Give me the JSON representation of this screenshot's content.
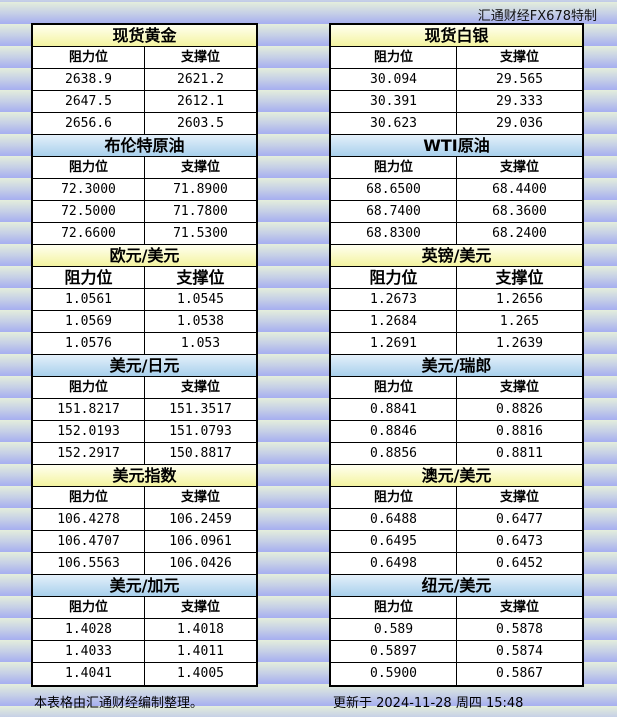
{
  "brand": "汇通财经FX678特制",
  "col_resist": "阻力位",
  "col_support": "支撑位",
  "left": [
    {
      "title": "现货黄金",
      "rows": [
        [
          "2638.9",
          "2621.2"
        ],
        [
          "2647.5",
          "2612.1"
        ],
        [
          "2656.6",
          "2603.5"
        ]
      ]
    },
    {
      "title": "布伦特原油",
      "rows": [
        [
          "72.3000",
          "71.8900"
        ],
        [
          "72.5000",
          "71.7800"
        ],
        [
          "72.6600",
          "71.5300"
        ]
      ]
    },
    {
      "title": "欧元/美元",
      "rows": [
        [
          "1.0561",
          "1.0545"
        ],
        [
          "1.0569",
          "1.0538"
        ],
        [
          "1.0576",
          "1.053"
        ]
      ]
    },
    {
      "title": "美元/日元",
      "rows": [
        [
          "151.8217",
          "151.3517"
        ],
        [
          "152.0193",
          "151.0793"
        ],
        [
          "152.2917",
          "150.8817"
        ]
      ]
    },
    {
      "title": "美元指数",
      "rows": [
        [
          "106.4278",
          "106.2459"
        ],
        [
          "106.4707",
          "106.0961"
        ],
        [
          "106.5563",
          "106.0426"
        ]
      ]
    },
    {
      "title": "美元/加元",
      "rows": [
        [
          "1.4028",
          "1.4018"
        ],
        [
          "1.4033",
          "1.4011"
        ],
        [
          "1.4041",
          "1.4005"
        ]
      ]
    }
  ],
  "right": [
    {
      "title": "现货白银",
      "rows": [
        [
          "30.094",
          "29.565"
        ],
        [
          "30.391",
          "29.333"
        ],
        [
          "30.623",
          "29.036"
        ]
      ]
    },
    {
      "title": "WTI原油",
      "rows": [
        [
          "68.6500",
          "68.4400"
        ],
        [
          "68.7400",
          "68.3600"
        ],
        [
          "68.8300",
          "68.2400"
        ]
      ]
    },
    {
      "title": "英镑/美元",
      "rows": [
        [
          "1.2673",
          "1.2656"
        ],
        [
          "1.2684",
          "1.265"
        ],
        [
          "1.2691",
          "1.2639"
        ]
      ]
    },
    {
      "title": "美元/瑞郎",
      "rows": [
        [
          "0.8841",
          "0.8826"
        ],
        [
          "0.8846",
          "0.8816"
        ],
        [
          "0.8856",
          "0.8811"
        ]
      ]
    },
    {
      "title": "澳元/美元",
      "rows": [
        [
          "0.6488",
          "0.6477"
        ],
        [
          "0.6495",
          "0.6473"
        ],
        [
          "0.6498",
          "0.6452"
        ]
      ]
    },
    {
      "title": "纽元/美元",
      "rows": [
        [
          "0.589",
          "0.5878"
        ],
        [
          "0.5897",
          "0.5874"
        ],
        [
          "0.5900",
          "0.5867"
        ]
      ]
    }
  ],
  "footer": {
    "note": "本表格由汇通财经编制整理。",
    "updated": "更新于 2024-11-28 周四 15:48"
  }
}
